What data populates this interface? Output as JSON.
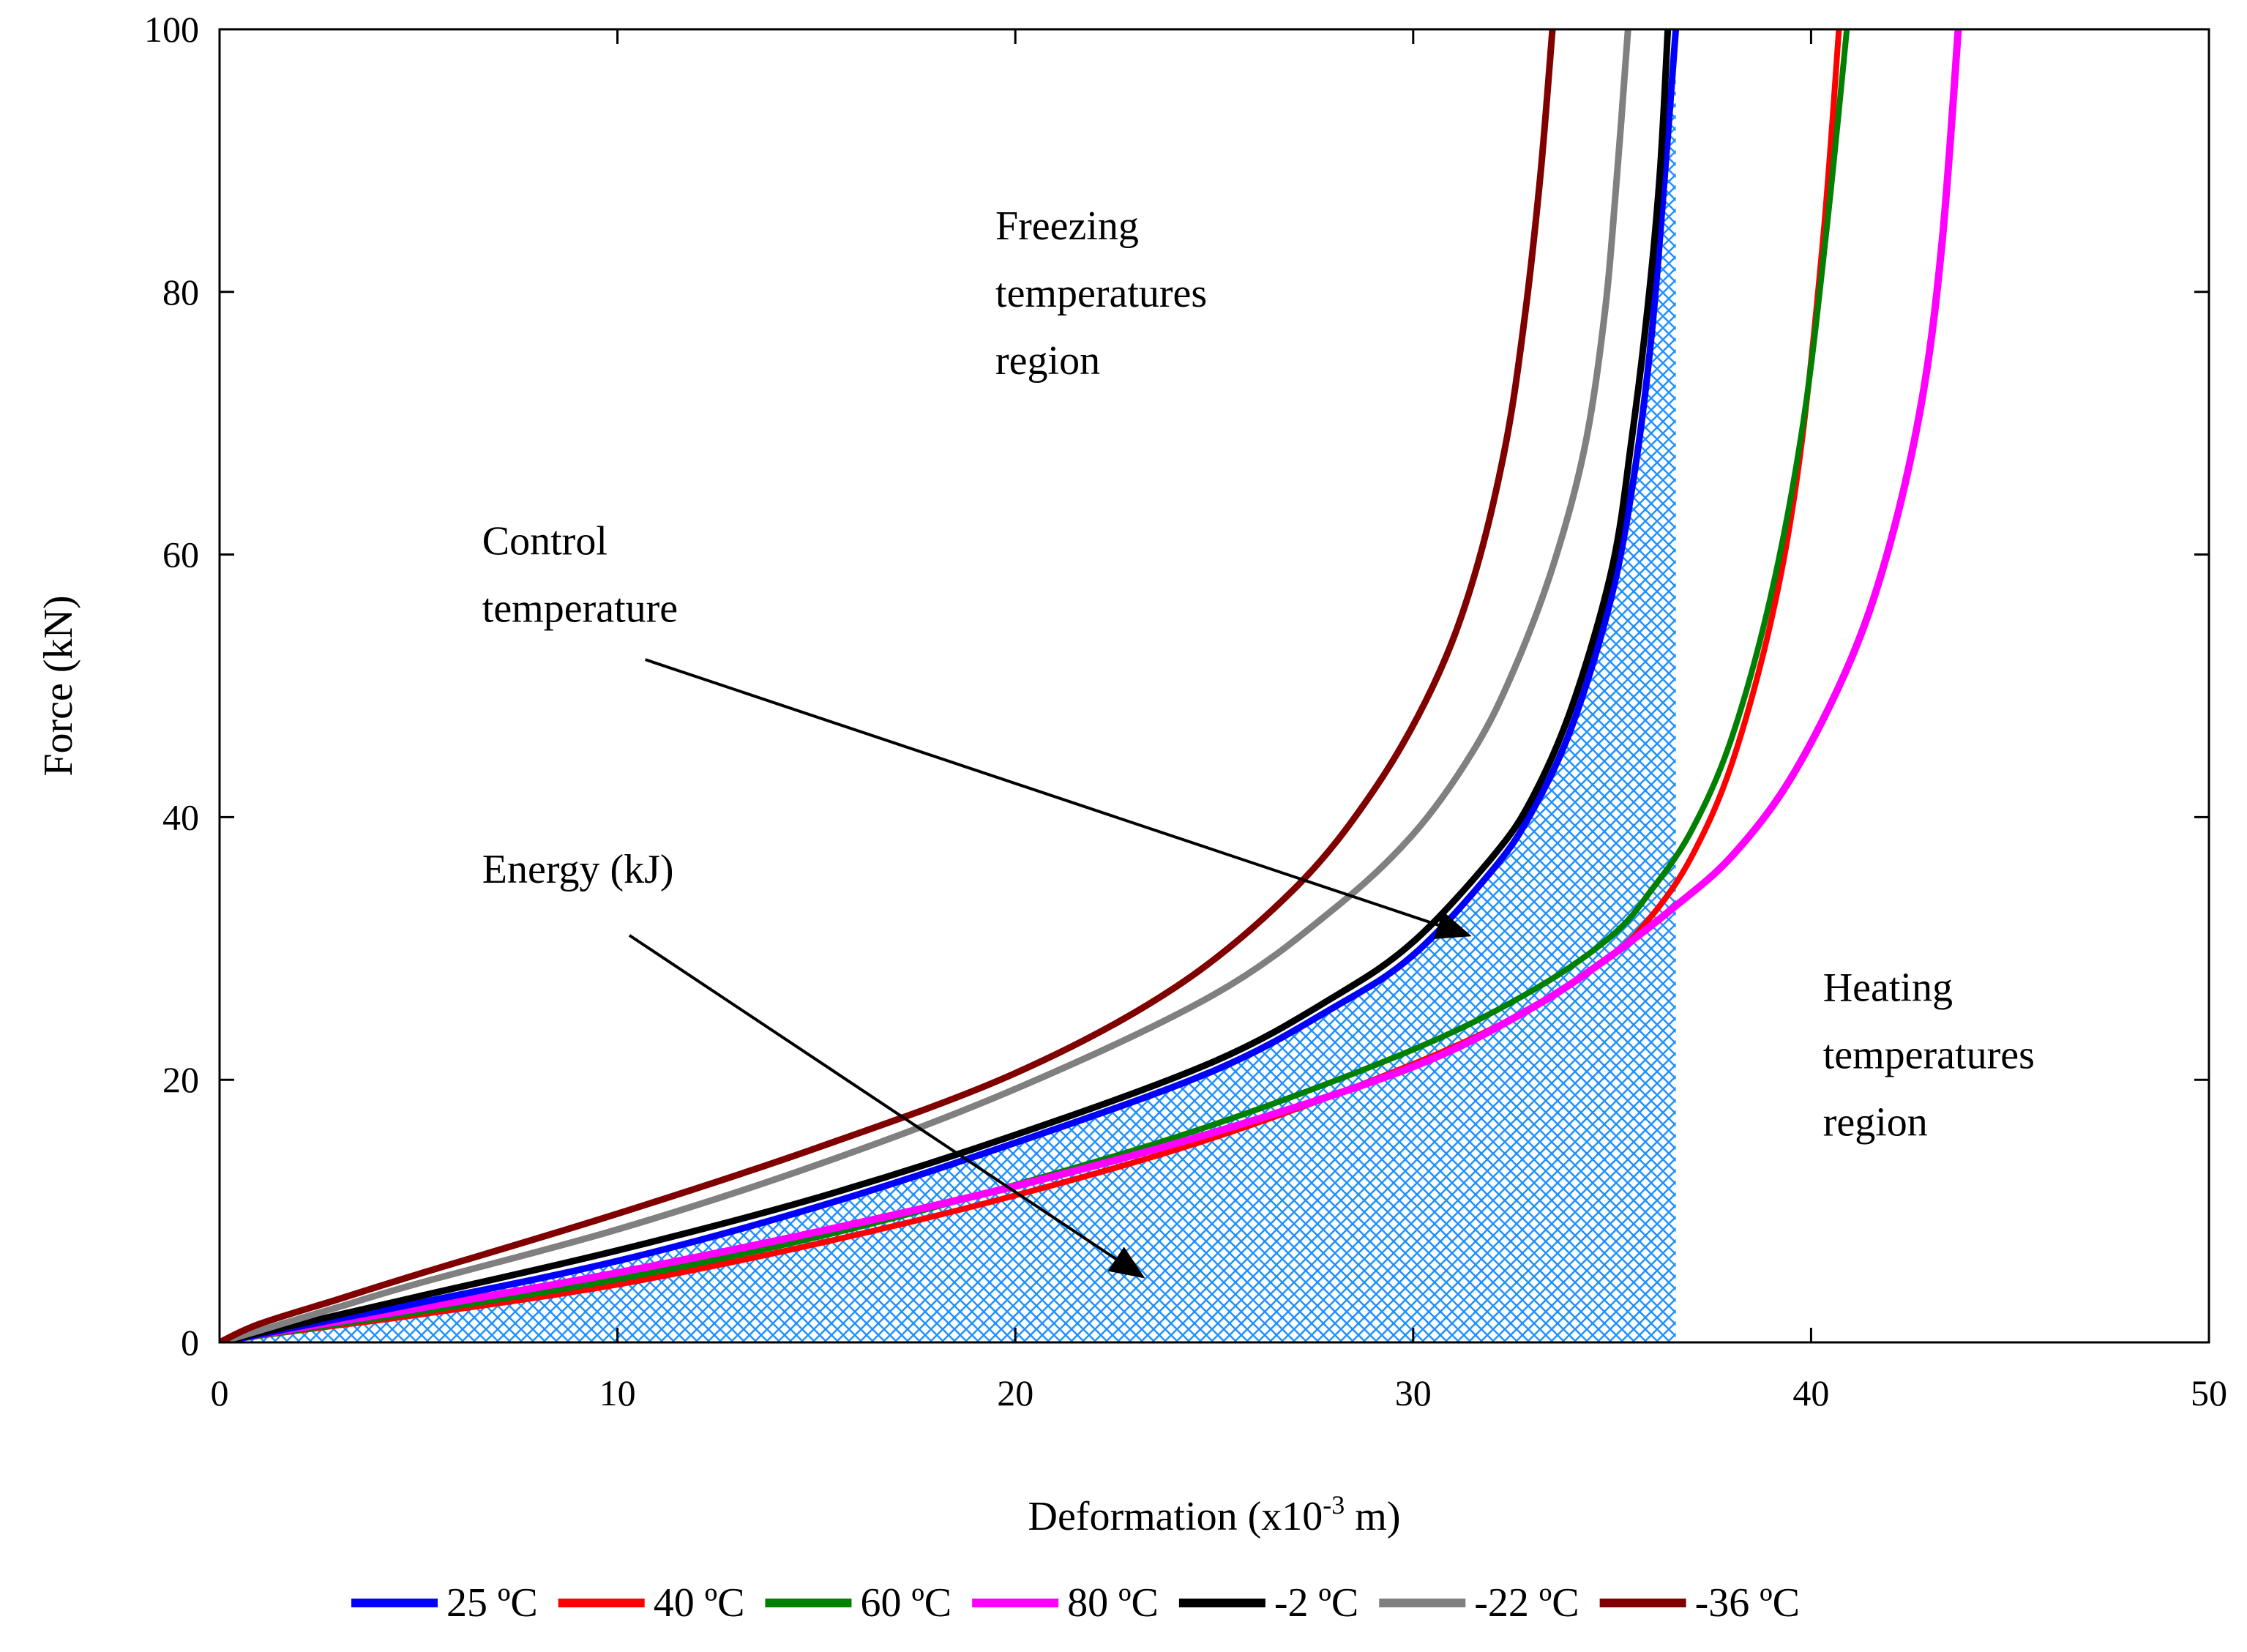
{
  "chart_data": {
    "type": "line",
    "xlabel": "Deformation (x10",
    "xlabel_sup": "-3",
    "xlabel_suffix": " m)",
    "ylabel": "Force (kN)",
    "xlim": [
      0,
      50
    ],
    "ylim": [
      0,
      100
    ],
    "xticks": [
      0,
      10,
      20,
      30,
      40,
      50
    ],
    "yticks": [
      0,
      20,
      40,
      60,
      80,
      100
    ],
    "grid": false,
    "legend_position": "bottom",
    "shaded_area": {
      "label": "Energy (kJ)",
      "series": "25 °C",
      "x_end": 36.6,
      "color": "#1e90ff"
    },
    "annotations": [
      {
        "lines": [
          "Freezing",
          "temperatures",
          "region"
        ],
        "x": 19.5,
        "y_top": 84
      },
      {
        "lines": [
          "Heating",
          "temperatures",
          "region"
        ],
        "x": 40.3,
        "y_top": 26
      },
      {
        "lines": [
          "Control",
          "temperature"
        ],
        "x": 6.6,
        "y_top": 60,
        "arrow_from": [
          10.7,
          52
        ],
        "arrow_to": [
          31.4,
          31
        ]
      },
      {
        "lines": [
          "Energy (kJ)"
        ],
        "x": 6.6,
        "y_top": 35,
        "arrow_from": [
          10.3,
          31
        ],
        "arrow_to": [
          23.2,
          5
        ]
      }
    ],
    "series": [
      {
        "name": "25 °C",
        "label": "25",
        "color": "#0000ff",
        "width": 9,
        "x": [
          0,
          1,
          3,
          5,
          10,
          15,
          20,
          25,
          28,
          30,
          32,
          33,
          34,
          35,
          35.6,
          36,
          36.3,
          36.6
        ],
        "y": [
          0,
          0.6,
          1.8,
          3,
          6.2,
          10.3,
          15.2,
          20.7,
          25.5,
          29.5,
          36,
          40.5,
          47,
          57,
          67,
          77,
          88,
          100
        ]
      },
      {
        "name": "40 °C",
        "label": "40",
        "color": "#ff0000",
        "width": 8,
        "x": [
          0,
          1,
          3,
          5,
          10,
          15,
          20,
          25,
          30,
          33,
          35,
          36,
          37,
          38,
          39,
          39.7,
          40.3,
          40.7
        ],
        "y": [
          0,
          0.5,
          1.3,
          2.1,
          4.4,
          7.5,
          11.2,
          15.6,
          21.2,
          25.5,
          29.5,
          32.5,
          37,
          44,
          55,
          67,
          84,
          100
        ]
      },
      {
        "name": "60 °C",
        "label": "60",
        "color": "#008000",
        "width": 8,
        "x": [
          0,
          1,
          3,
          5,
          10,
          15,
          20,
          25,
          30,
          33,
          35,
          36,
          37,
          38,
          39,
          39.8,
          40.4,
          40.9
        ],
        "y": [
          0,
          0.5,
          1.4,
          2.3,
          4.8,
          8,
          12,
          16.6,
          22.3,
          26.8,
          31,
          34.5,
          39,
          46,
          57,
          70,
          85,
          100
        ]
      },
      {
        "name": "80 °C",
        "label": "80",
        "color": "#ff00ff",
        "width": 10,
        "x": [
          0,
          1,
          3,
          5,
          10,
          15,
          20,
          25,
          30,
          33,
          35,
          36.5,
          38,
          39.5,
          41,
          42,
          42.8,
          43.3,
          43.7
        ],
        "y": [
          0,
          0.6,
          1.6,
          2.6,
          5.3,
          8.4,
          11.9,
          16,
          21,
          25.5,
          29.5,
          33,
          37,
          43,
          52,
          61,
          72,
          84,
          100
        ]
      },
      {
        "name": "-2 °C",
        "label": "-2",
        "color": "#000000",
        "width": 9,
        "x": [
          0,
          1,
          3,
          5,
          10,
          15,
          20,
          25,
          28,
          30,
          32,
          33,
          34,
          35,
          35.5,
          35.9,
          36.2,
          36.4
        ],
        "y": [
          0,
          0.7,
          2.1,
          3.5,
          7,
          11,
          15.8,
          21.4,
          26.3,
          30.5,
          37,
          41.5,
          48.5,
          59,
          69,
          79,
          89,
          100
        ]
      },
      {
        "name": "-22 °C",
        "label": "-22",
        "color": "#808080",
        "width": 9,
        "x": [
          0,
          1,
          3,
          5,
          10,
          15,
          20,
          25,
          28,
          30,
          31.5,
          32.5,
          33.5,
          34.3,
          34.8,
          35.1,
          35.4
        ],
        "y": [
          0,
          0.9,
          2.7,
          4.5,
          8.6,
          13.5,
          19.3,
          26.5,
          33,
          38.7,
          45,
          51,
          59,
          68,
          78,
          88,
          100
        ]
      },
      {
        "name": "-36 °C",
        "label": "-36",
        "color": "#800000",
        "width": 9,
        "x": [
          0,
          1,
          3,
          5,
          10,
          15,
          20,
          24,
          27,
          29,
          30.5,
          31.5,
          32.3,
          32.8,
          33.2,
          33.5
        ],
        "y": [
          0,
          1.4,
          3.3,
          5.2,
          9.8,
          14.8,
          20.5,
          27,
          34.5,
          42,
          50,
          58,
          68,
          78,
          89,
          100
        ]
      }
    ],
    "legend_unit": "ºC"
  }
}
